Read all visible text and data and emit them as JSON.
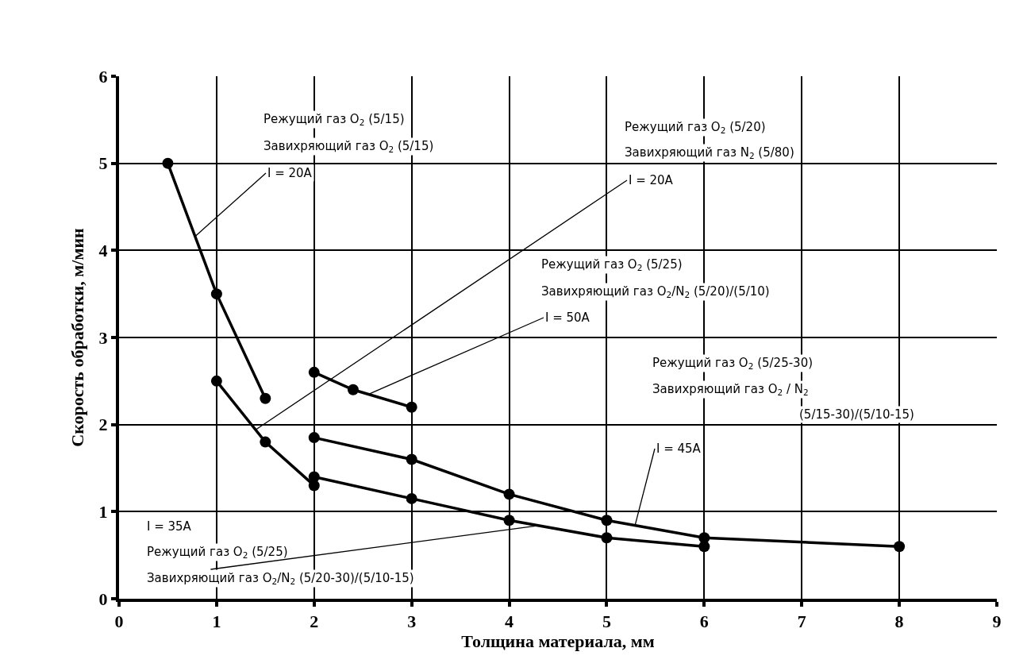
{
  "chart_data": {
    "type": "line",
    "xlabel": "Толщина материала, мм",
    "ylabel": "Скорость обработки, м/мин",
    "xlim": [
      0,
      9
    ],
    "xticks": [
      0,
      1,
      2,
      3,
      4,
      5,
      6,
      7,
      8,
      9
    ],
    "ylim": [
      0,
      6
    ],
    "yticks": [
      0,
      1,
      2,
      3,
      4,
      5,
      6
    ],
    "grid": true,
    "marker": "circle",
    "line_style": "solid",
    "series": [
      {
        "color": "#000000",
        "x": [
          0.5,
          1,
          1.5
        ],
        "values": [
          5,
          3.5,
          2.3
        ]
      },
      {
        "color": "#000000",
        "x": [
          1,
          1.5,
          2
        ],
        "values": [
          2.5,
          1.8,
          1.3
        ]
      },
      {
        "color": "#000000",
        "x": [
          2,
          2.4,
          3
        ],
        "values": [
          2.6,
          2.4,
          2.2
        ]
      },
      {
        "color": "#000000",
        "x": [
          2,
          3,
          4,
          5,
          6,
          8
        ],
        "values": [
          1.85,
          1.6,
          1.2,
          0.9,
          0.7,
          0.6
        ]
      },
      {
        "color": "#000000",
        "x": [
          2,
          3,
          4,
          5,
          6
        ],
        "values": [
          1.4,
          1.15,
          0.9,
          0.7,
          0.6
        ]
      }
    ],
    "annotations": [
      "Режущий газ O$_{2}$ (5/15)",
      "Завихряющий газ O$_{2}$ (5/15)",
      {
        "text": "I = 20A",
        "x": 0.78,
        "y": 4.16
      },
      "Режущий газ O$_{2}$ (5/20)",
      "Завихряющий газ N$_{2}$ (5/80)",
      {
        "text": "I = 20A",
        "x": 1.4,
        "y": 1.94
      },
      "Режущий газ O$_{2}$ (5/25)",
      "Завихряющий газ O$_{2}$/N$_{2}$ (5/20)/(5/10)",
      {
        "text": "I = 50A",
        "x": 2.56,
        "y": 2.35
      },
      "Режущий газ O$_{2}$ (5/25-30)",
      "Завихряющий газ O$_{2}$ / N$_{2}$",
      "(5/15-30)/(5/10-15)",
      {
        "text": "I = 45A",
        "x": 5.29,
        "y": 0.84
      },
      "I = 35A",
      "Режущий газ O$_{2}$ (5/25)",
      {
        "text": "Завихряющий газ O$_{2}$/N$_{2}$ (5/20-30)/(5/10-15)",
        "x": 4.3,
        "y": 0.84
      }
    ]
  }
}
